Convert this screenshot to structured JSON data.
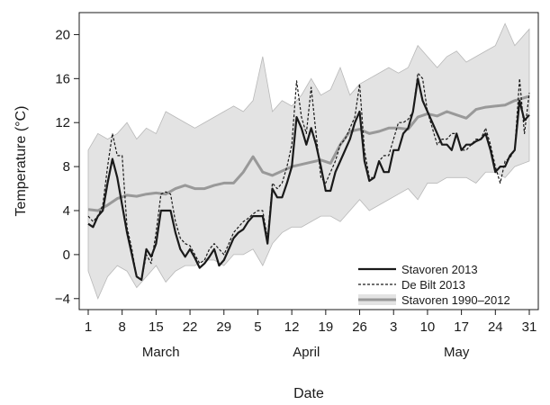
{
  "chart_data": {
    "type": "line",
    "title": "",
    "xlabel": "Date",
    "ylabel": "Temperature (°C)",
    "ylim": [
      -5,
      22
    ],
    "xlim": [
      "2013-03-01",
      "2013-05-31"
    ],
    "y_ticks": [
      -4,
      0,
      4,
      8,
      12,
      16,
      20
    ],
    "x_ticks": [
      {
        "date": "2013-03-01",
        "label": "1"
      },
      {
        "date": "2013-03-08",
        "label": "8"
      },
      {
        "date": "2013-03-15",
        "label": "15"
      },
      {
        "date": "2013-03-22",
        "label": "22"
      },
      {
        "date": "2013-03-29",
        "label": "29"
      },
      {
        "date": "2013-04-05",
        "label": "5"
      },
      {
        "date": "2013-04-12",
        "label": "12"
      },
      {
        "date": "2013-04-19",
        "label": "19"
      },
      {
        "date": "2013-04-26",
        "label": "26"
      },
      {
        "date": "2013-05-03",
        "label": "3"
      },
      {
        "date": "2013-05-10",
        "label": "10"
      },
      {
        "date": "2013-05-17",
        "label": "17"
      },
      {
        "date": "2013-05-24",
        "label": "24"
      },
      {
        "date": "2013-05-31",
        "label": "31"
      }
    ],
    "month_labels": [
      {
        "date": "2013-03-16",
        "label": "March"
      },
      {
        "date": "2013-04-15",
        "label": "April"
      },
      {
        "date": "2013-05-16",
        "label": "May"
      }
    ],
    "grid": false,
    "legend_position": "bottom-right",
    "colors": {
      "stavoren_2013": "#1a1a1a",
      "debilt_2013": "#1a1a1a",
      "mean": "#999999",
      "band": "#e3e3e3",
      "band_edge": "#b8b8b8"
    },
    "band": {
      "name": "",
      "x": [
        "2013-03-01",
        "2013-03-03",
        "2013-03-05",
        "2013-03-07",
        "2013-03-09",
        "2013-03-11",
        "2013-03-13",
        "2013-03-15",
        "2013-03-17",
        "2013-03-19",
        "2013-03-21",
        "2013-03-23",
        "2013-03-25",
        "2013-03-27",
        "2013-03-29",
        "2013-03-31",
        "2013-04-02",
        "2013-04-04",
        "2013-04-06",
        "2013-04-08",
        "2013-04-10",
        "2013-04-12",
        "2013-04-14",
        "2013-04-16",
        "2013-04-18",
        "2013-04-20",
        "2013-04-22",
        "2013-04-24",
        "2013-04-26",
        "2013-04-28",
        "2013-04-30",
        "2013-05-02",
        "2013-05-04",
        "2013-05-06",
        "2013-05-08",
        "2013-05-10",
        "2013-05-12",
        "2013-05-14",
        "2013-05-16",
        "2013-05-18",
        "2013-05-20",
        "2013-05-22",
        "2013-05-24",
        "2013-05-26",
        "2013-05-28",
        "2013-05-31"
      ],
      "upper": [
        9.5,
        11,
        10.5,
        11,
        12,
        10.5,
        11.5,
        11,
        13,
        12.5,
        12,
        11.5,
        12,
        12.5,
        13,
        13.5,
        13,
        14,
        18,
        13,
        14,
        13.5,
        14.5,
        16,
        14.5,
        15,
        17,
        14.5,
        15.5,
        16,
        16.5,
        17,
        16.5,
        17,
        19,
        18,
        17,
        18,
        18.5,
        17.5,
        18,
        18.5,
        19,
        21,
        19,
        20.5
      ],
      "lower": [
        -1.5,
        -4,
        -2,
        -1,
        -1.5,
        -3,
        -2,
        -1,
        -2.5,
        -1.5,
        -1,
        -1,
        -0.5,
        -0.5,
        -1,
        0,
        0,
        0.5,
        -1,
        1,
        2,
        2.5,
        2.5,
        3,
        3.5,
        3.5,
        3,
        4,
        5,
        4,
        4.5,
        5,
        5.5,
        6,
        5,
        6.5,
        6.5,
        7,
        7,
        7,
        6.5,
        7.5,
        7.5,
        7,
        8,
        8.5
      ]
    },
    "series": [
      {
        "name": "Stavoren 2013",
        "style": "solid",
        "x": [
          "2013-03-01",
          "2013-03-02",
          "2013-03-03",
          "2013-03-04",
          "2013-03-05",
          "2013-03-06",
          "2013-03-07",
          "2013-03-08",
          "2013-03-09",
          "2013-03-10",
          "2013-03-11",
          "2013-03-12",
          "2013-03-13",
          "2013-03-14",
          "2013-03-15",
          "2013-03-16",
          "2013-03-17",
          "2013-03-18",
          "2013-03-19",
          "2013-03-20",
          "2013-03-21",
          "2013-03-22",
          "2013-03-23",
          "2013-03-24",
          "2013-03-25",
          "2013-03-26",
          "2013-03-27",
          "2013-03-28",
          "2013-03-29",
          "2013-03-30",
          "2013-03-31",
          "2013-04-01",
          "2013-04-02",
          "2013-04-03",
          "2013-04-04",
          "2013-04-05",
          "2013-04-06",
          "2013-04-07",
          "2013-04-08",
          "2013-04-09",
          "2013-04-10",
          "2013-04-11",
          "2013-04-12",
          "2013-04-13",
          "2013-04-14",
          "2013-04-15",
          "2013-04-16",
          "2013-04-17",
          "2013-04-18",
          "2013-04-19",
          "2013-04-20",
          "2013-04-21",
          "2013-04-22",
          "2013-04-23",
          "2013-04-24",
          "2013-04-25",
          "2013-04-26",
          "2013-04-27",
          "2013-04-28",
          "2013-04-29",
          "2013-04-30",
          "2013-05-01",
          "2013-05-02",
          "2013-05-03",
          "2013-05-04",
          "2013-05-05",
          "2013-05-06",
          "2013-05-07",
          "2013-05-08",
          "2013-05-09",
          "2013-05-10",
          "2013-05-11",
          "2013-05-12",
          "2013-05-13",
          "2013-05-14",
          "2013-05-15",
          "2013-05-16",
          "2013-05-17",
          "2013-05-18",
          "2013-05-19",
          "2013-05-20",
          "2013-05-21",
          "2013-05-22",
          "2013-05-23",
          "2013-05-24",
          "2013-05-25",
          "2013-05-26",
          "2013-05-27",
          "2013-05-28",
          "2013-05-29",
          "2013-05-30",
          "2013-05-31"
        ],
        "y": [
          2.8,
          2.5,
          3.5,
          4,
          6.5,
          8.7,
          7,
          4.5,
          2,
          0,
          -2,
          -2.3,
          0.5,
          -0.2,
          1,
          4,
          4,
          4,
          2,
          0.5,
          -0.2,
          0.5,
          -0.3,
          -1.2,
          -0.8,
          -0.2,
          0.5,
          -1,
          -0.5,
          0.5,
          1.5,
          2,
          2.3,
          3,
          3.5,
          3.5,
          3.5,
          1,
          6,
          5.2,
          5.2,
          6.5,
          8,
          12.5,
          11.5,
          10,
          11.5,
          10,
          8,
          5.8,
          5.8,
          7.5,
          8.5,
          9.5,
          10.5,
          12,
          13,
          8.5,
          6.7,
          7,
          8.5,
          7.5,
          7.5,
          9.5,
          9.5,
          11,
          11.5,
          13,
          16,
          14,
          13,
          12,
          11,
          10,
          10,
          9.5,
          11,
          9.5,
          10,
          10,
          10.3,
          10.5,
          11,
          9.5,
          7.5,
          8,
          8,
          9,
          9.5,
          14,
          12.2,
          12.7
        ]
      },
      {
        "name": "De Bilt 2013",
        "style": "dashed",
        "x": [
          "2013-03-01",
          "2013-03-02",
          "2013-03-03",
          "2013-03-04",
          "2013-03-05",
          "2013-03-06",
          "2013-03-07",
          "2013-03-08",
          "2013-03-09",
          "2013-03-10",
          "2013-03-11",
          "2013-03-12",
          "2013-03-13",
          "2013-03-14",
          "2013-03-15",
          "2013-03-16",
          "2013-03-17",
          "2013-03-18",
          "2013-03-19",
          "2013-03-20",
          "2013-03-21",
          "2013-03-22",
          "2013-03-23",
          "2013-03-24",
          "2013-03-25",
          "2013-03-26",
          "2013-03-27",
          "2013-03-28",
          "2013-03-29",
          "2013-03-30",
          "2013-03-31",
          "2013-04-01",
          "2013-04-02",
          "2013-04-03",
          "2013-04-04",
          "2013-04-05",
          "2013-04-06",
          "2013-04-07",
          "2013-04-08",
          "2013-04-09",
          "2013-04-10",
          "2013-04-11",
          "2013-04-12",
          "2013-04-13",
          "2013-04-14",
          "2013-04-15",
          "2013-04-16",
          "2013-04-17",
          "2013-04-18",
          "2013-04-19",
          "2013-04-20",
          "2013-04-21",
          "2013-04-22",
          "2013-04-23",
          "2013-04-24",
          "2013-04-25",
          "2013-04-26",
          "2013-04-27",
          "2013-04-28",
          "2013-04-29",
          "2013-04-30",
          "2013-05-01",
          "2013-05-02",
          "2013-05-03",
          "2013-05-04",
          "2013-05-05",
          "2013-05-06",
          "2013-05-07",
          "2013-05-08",
          "2013-05-09",
          "2013-05-10",
          "2013-05-11",
          "2013-05-12",
          "2013-05-13",
          "2013-05-14",
          "2013-05-15",
          "2013-05-16",
          "2013-05-17",
          "2013-05-18",
          "2013-05-19",
          "2013-05-20",
          "2013-05-21",
          "2013-05-22",
          "2013-05-23",
          "2013-05-24",
          "2013-05-25",
          "2013-05-26",
          "2013-05-27",
          "2013-05-28",
          "2013-05-29",
          "2013-05-30",
          "2013-05-31"
        ],
        "y": [
          3.5,
          3,
          3.5,
          4.5,
          8,
          11,
          9,
          9,
          2.5,
          0.5,
          -2,
          -2.3,
          0,
          -0.8,
          2,
          5.5,
          5.7,
          5.5,
          3,
          1.5,
          1,
          0.8,
          0,
          -0.8,
          -0.5,
          0.5,
          1,
          0.5,
          0,
          1,
          2,
          2.5,
          3,
          3.3,
          3.7,
          4,
          4,
          1.5,
          6.5,
          6,
          6.5,
          8,
          10,
          15.8,
          12.5,
          11,
          15.2,
          11,
          7,
          6.5,
          7.5,
          8.5,
          10,
          10.5,
          11.5,
          12.5,
          15.5,
          9.5,
          7,
          7,
          8.5,
          9,
          9,
          10.5,
          12,
          12,
          12.3,
          13,
          16.5,
          16,
          13,
          11.5,
          10,
          10.5,
          10.5,
          11,
          11,
          9.5,
          9.5,
          10,
          10.5,
          10.5,
          11.5,
          10,
          8,
          6.5,
          8.5,
          8.8,
          9.5,
          16,
          11,
          14.7
        ]
      },
      {
        "name": "Stavoren 1990–2012",
        "style": "mean",
        "x": [
          "2013-03-01",
          "2013-03-03",
          "2013-03-05",
          "2013-03-07",
          "2013-03-09",
          "2013-03-11",
          "2013-03-13",
          "2013-03-15",
          "2013-03-17",
          "2013-03-19",
          "2013-03-21",
          "2013-03-23",
          "2013-03-25",
          "2013-03-27",
          "2013-03-29",
          "2013-03-31",
          "2013-04-02",
          "2013-04-04",
          "2013-04-06",
          "2013-04-08",
          "2013-04-10",
          "2013-04-12",
          "2013-04-14",
          "2013-04-16",
          "2013-04-18",
          "2013-04-20",
          "2013-04-22",
          "2013-04-24",
          "2013-04-26",
          "2013-04-28",
          "2013-04-30",
          "2013-05-02",
          "2013-05-04",
          "2013-05-06",
          "2013-05-08",
          "2013-05-10",
          "2013-05-12",
          "2013-05-14",
          "2013-05-16",
          "2013-05-18",
          "2013-05-20",
          "2013-05-22",
          "2013-05-24",
          "2013-05-26",
          "2013-05-28",
          "2013-05-31"
        ],
        "y": [
          4.1,
          4,
          4.5,
          5.1,
          5.4,
          5.3,
          5.5,
          5.6,
          5.5,
          6,
          6.3,
          6,
          6,
          6.3,
          6.5,
          6.5,
          7.5,
          8.9,
          7.5,
          7.2,
          7.6,
          8,
          8.2,
          8.4,
          8.6,
          8.3,
          10,
          11.2,
          11.4,
          11,
          11.2,
          11.5,
          11.5,
          11.4,
          12.5,
          12.8,
          12.6,
          13,
          12.7,
          12.4,
          13.2,
          13.4,
          13.5,
          13.6,
          14,
          14.4
        ]
      }
    ]
  }
}
